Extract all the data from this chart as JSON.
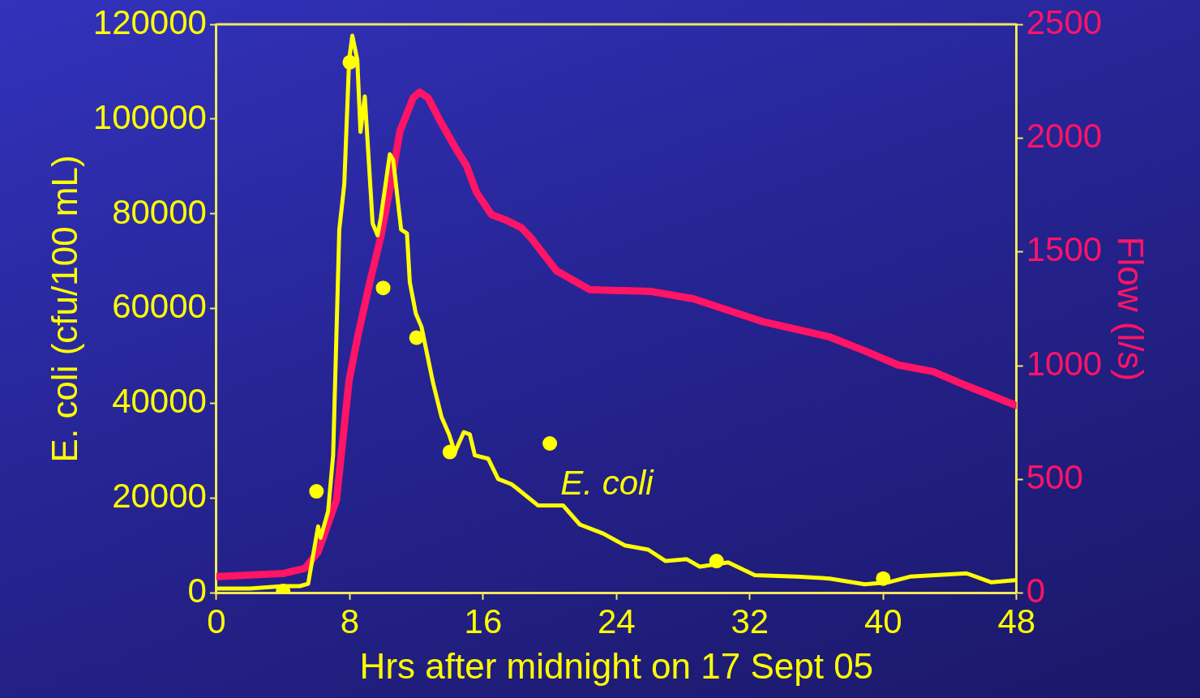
{
  "chart_data": {
    "type": "line",
    "xlabel": "Hrs after midnight on 17 Sept 05",
    "ylabel": "E. coli (cfu/100 mL)",
    "y2label": "Flow (l/s)",
    "xlim": [
      0,
      48
    ],
    "xticks": [
      0,
      8,
      16,
      24,
      32,
      40,
      48
    ],
    "ylim": [
      0,
      120000
    ],
    "yticks": [
      0,
      20000,
      40000,
      60000,
      80000,
      100000,
      120000
    ],
    "y2lim": [
      0,
      2500
    ],
    "y2ticks": [
      0,
      500,
      1000,
      1500,
      2000,
      2500
    ],
    "grid": false,
    "legend": false,
    "marker": "none",
    "line_style": "solid",
    "series": [
      {
        "type": "line",
        "color": "#ffff00",
        "x": [
          0,
          2,
          4,
          5,
          5.5,
          6.1,
          6.25,
          6.7,
          7.0,
          7.37,
          7.67,
          7.96,
          8.15,
          8.45,
          8.64,
          8.9,
          9.37,
          9.67,
          9.86,
          10.4,
          10.6,
          11.08,
          11.43,
          11.6,
          11.96,
          12.3,
          13.0,
          13.5,
          13.96,
          14.3,
          14.84,
          15.2,
          15.5,
          16.3,
          16.9,
          17.7,
          18.0,
          19.3,
          20.8,
          21.8,
          23.2,
          24.5,
          25.9,
          26.95,
          28.2,
          29.0,
          30.7,
          32.3,
          34.8,
          36.8,
          38.9,
          40.3,
          41.6,
          45,
          46.5,
          48
        ],
        "values": [
          1000,
          1000,
          1500,
          1500,
          2000,
          14100,
          11700,
          17300,
          29100,
          76700,
          86300,
          112500,
          117600,
          112500,
          97300,
          104800,
          78000,
          75500,
          79200,
          92600,
          91400,
          76700,
          75900,
          65600,
          59000,
          56200,
          44300,
          37200,
          33500,
          29700,
          34000,
          33500,
          29100,
          28400,
          24100,
          23000,
          22200,
          18500,
          18500,
          14500,
          12600,
          10100,
          9200,
          6800,
          7200,
          5600,
          6500,
          3800,
          3500,
          3100,
          1900,
          2300,
          3500,
          4200,
          2300,
          2800
        ]
      },
      {
        "type": "scatter",
        "color": "#ffff00",
        "marker": "circle",
        "x": [
          4,
          6,
          8,
          10,
          12,
          14,
          20,
          30,
          40
        ],
        "values": [
          500,
          21500,
          112000,
          64400,
          53900,
          29800,
          31600,
          6800,
          3100
        ]
      },
      {
        "type": "line",
        "axis": "y2",
        "color": "#ff1466",
        "x": [
          0,
          4,
          5.3,
          6.1,
          7.2,
          7.96,
          8.5,
          9.2,
          9.86,
          10.5,
          11.0,
          11.8,
          12.2,
          12.7,
          13.4,
          14.3,
          15.0,
          15.6,
          16.5,
          17.4,
          18.3,
          18.9,
          20.4,
          22.4,
          26.1,
          28.6,
          32.7,
          36.8,
          38.9,
          40.9,
          43,
          45,
          48
        ],
        "values": [
          73,
          87,
          109,
          182,
          411,
          937,
          1137,
          1366,
          1566,
          1813,
          2028,
          2177,
          2202,
          2177,
          2078,
          1962,
          1879,
          1762,
          1664,
          1639,
          1606,
          1559,
          1417,
          1334,
          1326,
          1294,
          1195,
          1126,
          1065,
          1003,
          974,
          912,
          825
        ]
      }
    ],
    "annotations": [
      "E. coli"
    ]
  }
}
